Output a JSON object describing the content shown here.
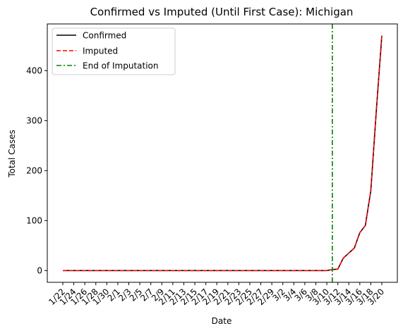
{
  "chart_data": {
    "type": "line",
    "title": "Confirmed vs Imputed (Until First Case): Michigan",
    "xlabel": "Date",
    "ylabel": "Total Cases",
    "categories": [
      "1/22",
      "1/23",
      "1/24",
      "1/25",
      "1/26",
      "1/27",
      "1/28",
      "1/29",
      "1/30",
      "1/31",
      "2/1",
      "2/2",
      "2/3",
      "2/4",
      "2/5",
      "2/6",
      "2/7",
      "2/8",
      "2/9",
      "2/10",
      "2/11",
      "2/12",
      "2/13",
      "2/14",
      "2/15",
      "2/16",
      "2/17",
      "2/18",
      "2/19",
      "2/20",
      "2/21",
      "2/22",
      "2/23",
      "2/24",
      "2/25",
      "2/26",
      "2/27",
      "2/28",
      "2/29",
      "3/1",
      "3/2",
      "3/3",
      "3/4",
      "3/5",
      "3/6",
      "3/7",
      "3/8",
      "3/9",
      "3/10",
      "3/11",
      "3/12",
      "3/13",
      "3/14",
      "3/15",
      "3/16",
      "3/17",
      "3/18",
      "3/19",
      "3/20"
    ],
    "x_tick_labels": [
      "1/22",
      "1/24",
      "1/26",
      "1/28",
      "1/30",
      "2/1",
      "2/3",
      "2/5",
      "2/7",
      "2/9",
      "2/11",
      "2/13",
      "2/15",
      "2/17",
      "2/19",
      "2/21",
      "2/23",
      "2/25",
      "2/27",
      "2/29",
      "3/2",
      "3/4",
      "3/6",
      "3/8",
      "3/10",
      "3/12",
      "3/14",
      "3/16",
      "3/18",
      "3/20"
    ],
    "ylim": [
      -23.5,
      493.5
    ],
    "y_ticks": [
      0,
      100,
      200,
      300,
      400
    ],
    "series": [
      {
        "name": "Confirmed",
        "color": "#000000",
        "style": "solid",
        "values": [
          0,
          0,
          0,
          0,
          0,
          0,
          0,
          0,
          0,
          0,
          0,
          0,
          0,
          0,
          0,
          0,
          0,
          0,
          0,
          0,
          0,
          0,
          0,
          0,
          0,
          0,
          0,
          0,
          0,
          0,
          0,
          0,
          0,
          0,
          0,
          0,
          0,
          0,
          0,
          0,
          0,
          0,
          0,
          0,
          0,
          0,
          0,
          0,
          0,
          2,
          3,
          25,
          35,
          45,
          76,
          90,
          160,
          320,
          470
        ]
      },
      {
        "name": "Imputed",
        "color": "#ff0000",
        "style": "dashed",
        "values": [
          0,
          0,
          0,
          0,
          0,
          0,
          0,
          0,
          0,
          0,
          0,
          0,
          0,
          0,
          0,
          0,
          0,
          0,
          0,
          0,
          0,
          0,
          0,
          0,
          0,
          0,
          0,
          0,
          0,
          0,
          0,
          0,
          0,
          0,
          0,
          0,
          0,
          0,
          0,
          0,
          0,
          0,
          0,
          0,
          0,
          0,
          0,
          0,
          0,
          2,
          3,
          25,
          35,
          45,
          76,
          90,
          160,
          320,
          470
        ]
      }
    ],
    "vline": {
      "name": "End of Imputation",
      "x": "3/11",
      "color": "#008000",
      "style": "dashdot"
    },
    "legend_position": "top-left",
    "grid": false
  }
}
